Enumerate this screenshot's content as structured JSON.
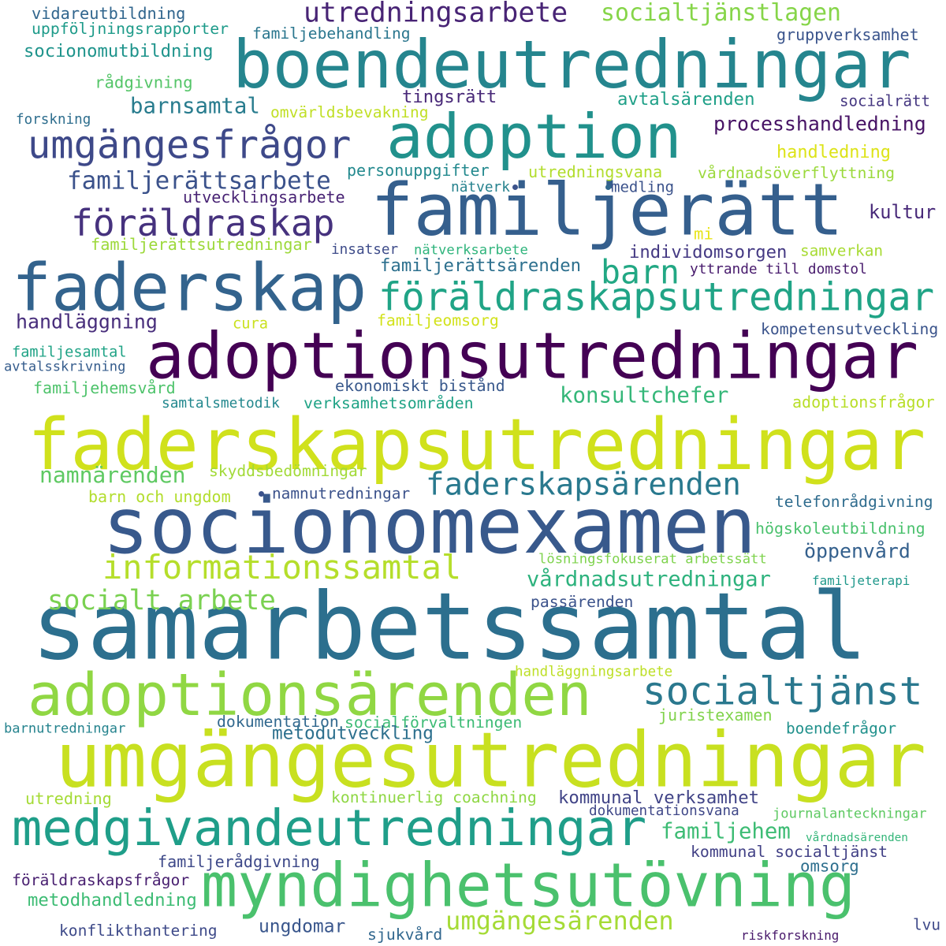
{
  "words": [
    {
      "text": "samarbetssamtal",
      "color": "#2c6f8e"
    },
    {
      "text": "faderskapsutredningar",
      "color": "#d0e11c"
    },
    {
      "text": "umgängesutredningar",
      "color": "#c8e020"
    },
    {
      "text": "boendeutredningar",
      "color": "#25858e"
    },
    {
      "text": "familjerätt",
      "color": "#355f8d"
    },
    {
      "text": "socionomexamen",
      "color": "#38598c"
    },
    {
      "text": "adoptionsutredningar",
      "color": "#440154"
    },
    {
      "text": "faderskap",
      "color": "#33638d"
    },
    {
      "text": "adoption",
      "color": "#21918c"
    },
    {
      "text": "myndighetsutövning",
      "color": "#4ac16d"
    },
    {
      "text": "adoptionsärenden",
      "color": "#90d743"
    },
    {
      "text": "medgivandeutredningar",
      "color": "#1f9e89"
    },
    {
      "text": "umgängesfrågor",
      "color": "#3e4989"
    },
    {
      "text": "föräldraskapsutredningar",
      "color": "#20a486"
    },
    {
      "text": "föräldraskap",
      "color": "#46327e"
    },
    {
      "text": "informationssamtal",
      "color": "#b5de2b"
    },
    {
      "text": "socialtjänst",
      "color": "#2a788e"
    },
    {
      "text": "faderskapsärenden",
      "color": "#29798e"
    },
    {
      "text": "familjerättsarbete",
      "color": "#3b528b"
    },
    {
      "text": "utredningsarbete",
      "color": "#482475"
    },
    {
      "text": "socialt arbete",
      "color": "#7ad151"
    },
    {
      "text": "vårdnadsutredningar",
      "color": "#2db27d"
    },
    {
      "text": "barn",
      "color": "#22a884"
    },
    {
      "text": "umgängesärenden",
      "color": "#a5db36"
    },
    {
      "text": "socialtjänstlagen",
      "color": "#86d549"
    },
    {
      "text": "konsultchefer",
      "color": "#35b779"
    },
    {
      "text": "namnärenden",
      "color": "#5ec962"
    },
    {
      "text": "barnsamtal",
      "color": "#287c8e"
    },
    {
      "text": "familjehem",
      "color": "#3dbc74"
    },
    {
      "text": "rådgivning",
      "color": "#54c568"
    },
    {
      "text": "handläggning",
      "color": "#472d7b"
    },
    {
      "text": "processhandledning",
      "color": "#471365"
    },
    {
      "text": "kommunal verksamhet",
      "color": "#414487"
    },
    {
      "text": "metodhandledning",
      "color": "#3dbc74"
    },
    {
      "text": "individomsorgen",
      "color": "#443983"
    },
    {
      "text": "socionomutbildning",
      "color": "#1f948c"
    },
    {
      "text": "handledning",
      "color": "#dde318"
    },
    {
      "text": "ungdomar",
      "color": "#39568c"
    },
    {
      "text": "avtalsärenden",
      "color": "#1fa088"
    },
    {
      "text": "familjerättsärenden",
      "color": "#2d708e"
    },
    {
      "text": "vidareutbildning",
      "color": "#31668e"
    },
    {
      "text": "uppföljningsrapporter",
      "color": "#1e9b8a"
    },
    {
      "text": "familjebehandling",
      "color": "#2a768e"
    },
    {
      "text": "gruppverksamhet",
      "color": "#3a548c"
    },
    {
      "text": "socialrätt",
      "color": "#453781"
    },
    {
      "text": "tingsrätt",
      "color": "#482878"
    },
    {
      "text": "omvärldsbevakning",
      "color": "#c0df25"
    },
    {
      "text": "forskning",
      "color": "#2e6e8e"
    },
    {
      "text": "personuppgifter",
      "color": "#23898e"
    },
    {
      "text": "utredningsvana",
      "color": "#b2dd2d"
    },
    {
      "text": "vårdnadsöverflyttning",
      "color": "#9bd93c"
    },
    {
      "text": "nätverk",
      "color": "#26828e"
    },
    {
      "text": "medling",
      "color": "#3b528b"
    },
    {
      "text": "utvecklingsarbete",
      "color": "#482374"
    },
    {
      "text": "kultur",
      "color": "#482979"
    },
    {
      "text": "mi",
      "color": "#e7e419"
    },
    {
      "text": "familjerättsutredningar",
      "color": "#9dd93b"
    },
    {
      "text": "insatser",
      "color": "#3e4c8a"
    },
    {
      "text": "nätverksarbete",
      "color": "#2fb47c"
    },
    {
      "text": "samverkan",
      "color": "#a8db34"
    },
    {
      "text": "yttrande till domstol",
      "color": "#481b6d"
    },
    {
      "text": "cura",
      "color": "#cae11f"
    },
    {
      "text": "familjeomsorg",
      "color": "#d2e21b"
    },
    {
      "text": "kompetensutveckling",
      "color": "#3a538b"
    },
    {
      "text": "familjesamtal",
      "color": "#20a386"
    },
    {
      "text": "avtalsskrivning",
      "color": "#365d8d"
    },
    {
      "text": "familjehemsvård",
      "color": "#4ec36b"
    },
    {
      "text": "ekonomiskt bistånd",
      "color": "#38588c"
    },
    {
      "text": "samtalsmetodik",
      "color": "#23888e"
    },
    {
      "text": "verksamhetsområden",
      "color": "#20a386"
    },
    {
      "text": "adoptionsfrågor",
      "color": "#b8de29"
    },
    {
      "text": "skyddsbedömningar",
      "color": "#a2da37"
    },
    {
      "text": "barn och ungdom",
      "color": "#b2dd2d"
    },
    {
      "text": "namnutredningar",
      "color": "#3b528b"
    },
    {
      "text": "telefonrådgivning",
      "color": "#2f6c8e"
    },
    {
      "text": "högskoleutbildning",
      "color": "#4ac16d"
    },
    {
      "text": "öppenvård",
      "color": "#34608d"
    },
    {
      "text": "lösningsfokuserat arbetssätt",
      "color": "#7fd34e"
    },
    {
      "text": "familjeterapi",
      "color": "#1f988b"
    },
    {
      "text": "passärenden",
      "color": "#3b528b"
    },
    {
      "text": "handläggningsarbete",
      "color": "#bddf26"
    },
    {
      "text": "barnutredningar",
      "color": "#25838e"
    },
    {
      "text": "dokumentation",
      "color": "#31688e"
    },
    {
      "text": "socialförvaltningen",
      "color": "#3cbb75"
    },
    {
      "text": "juristexamen",
      "color": "#81d34d"
    },
    {
      "text": "boendefrågor",
      "color": "#21918c"
    },
    {
      "text": "metodutveckling",
      "color": "#2d708e"
    },
    {
      "text": "utredning",
      "color": "#a5db36"
    },
    {
      "text": "kontinuerlig coachning",
      "color": "#8fd744"
    },
    {
      "text": "dokumentationsvana",
      "color": "#3f4788"
    },
    {
      "text": "journalanteckningar",
      "color": "#5ec962"
    },
    {
      "text": "vårdnadsärenden",
      "color": "#34b679"
    },
    {
      "text": "familjerådgivning",
      "color": "#3e4989"
    },
    {
      "text": "kommunal socialtjänst",
      "color": "#424186"
    },
    {
      "text": "föräldraskapsfrågor",
      "color": "#481f70"
    },
    {
      "text": "omsorg",
      "color": "#2e6f8e"
    },
    {
      "text": "konflikthantering",
      "color": "#3e4a89"
    },
    {
      "text": "sjukvård",
      "color": "#31678e"
    },
    {
      "text": "riskforskning",
      "color": "#48196b"
    },
    {
      "text": "lvu",
      "color": "#3e4989"
    }
  ],
  "dots": [
    {
      "color": "#3b528b"
    },
    {
      "color": "#31688e"
    },
    {
      "color": "#3b528b"
    }
  ]
}
